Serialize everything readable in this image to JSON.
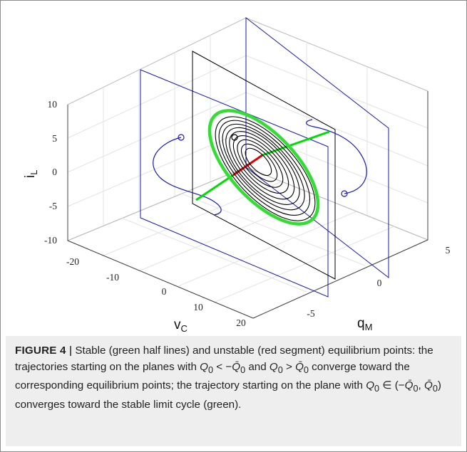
{
  "figure": {
    "axes": {
      "z_label_main": "i",
      "z_label_sub": "L",
      "x_label_main": "v",
      "x_label_sub": "C",
      "y_label_main": "q",
      "y_label_sub": "M",
      "z_ticks": [
        "10",
        "5",
        "0",
        "-5",
        "-10"
      ],
      "x_ticks": [
        "-20",
        "-10",
        "0",
        "10",
        "20"
      ],
      "y_ticks": [
        "-5",
        "0",
        "5"
      ]
    },
    "colors": {
      "stable_equilibria": "#00dd00",
      "unstable_equilibria": "#dd0000",
      "limit_cycle": "#33dd33",
      "trajectory": "#000000",
      "plane": "#1a1ab0",
      "grid": "#e3e3e3",
      "axes": "#555555"
    }
  },
  "caption": {
    "label": "FIGURE 4",
    "separator": "|",
    "text_1": "Stable (green half lines) and unstable (red segment) equilibrium points: the trajectories starting on the planes with ",
    "q0": "Q",
    "sub0": "0",
    "lt": " < −",
    "qbar": "Q̄",
    "and": " and ",
    "gt": " > ",
    "text_2": " converge toward the corresponding equilibrium points; the trajectory starting on the plane with ",
    "in": " ∈ (−",
    "comma": ", ",
    "close": ")",
    "text_3": " converges toward the stable limit cycle (green)."
  }
}
